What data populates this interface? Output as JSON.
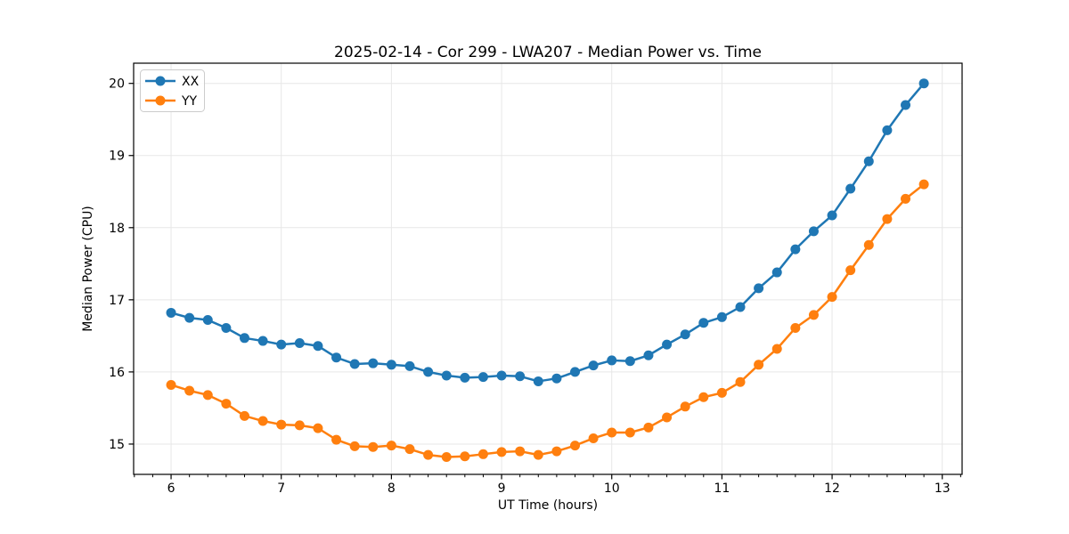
{
  "chart_data": {
    "type": "line",
    "title": "2025-02-14 - Cor 299 - LWA207 - Median Power vs. Time",
    "xlabel": "UT Time (hours)",
    "ylabel": "Median Power (CPU)",
    "xlim": [
      5.66,
      13.18
    ],
    "ylim": [
      14.58,
      20.28
    ],
    "xticks": [
      6,
      7,
      8,
      9,
      10,
      11,
      12,
      13
    ],
    "yticks": [
      15,
      16,
      17,
      18,
      19,
      20
    ],
    "x_minor_tick_step": 0.16667,
    "grid": true,
    "legend_position": "upper left",
    "x": [
      6.0,
      6.1667,
      6.3333,
      6.5,
      6.6667,
      6.8333,
      7.0,
      7.1667,
      7.3333,
      7.5,
      7.6667,
      7.8333,
      8.0,
      8.1667,
      8.3333,
      8.5,
      8.6667,
      8.8333,
      9.0,
      9.1667,
      9.3333,
      9.5,
      9.6667,
      9.8333,
      10.0,
      10.1667,
      10.3333,
      10.5,
      10.6667,
      10.8333,
      11.0,
      11.1667,
      11.3333,
      11.5,
      11.6667,
      11.8333,
      12.0,
      12.1667,
      12.3333,
      12.5,
      12.6667,
      12.8333
    ],
    "series": [
      {
        "name": "XX",
        "color": "#1f77b4",
        "values": [
          16.82,
          16.75,
          16.72,
          16.61,
          16.47,
          16.43,
          16.38,
          16.4,
          16.36,
          16.2,
          16.11,
          16.12,
          16.1,
          16.08,
          16.0,
          15.95,
          15.92,
          15.93,
          15.95,
          15.94,
          15.87,
          15.91,
          16.0,
          16.09,
          16.16,
          16.15,
          16.23,
          16.38,
          16.52,
          16.68,
          16.76,
          16.9,
          17.16,
          17.38,
          17.7,
          17.95,
          18.17,
          18.54,
          18.92,
          19.35,
          19.7,
          20.0
        ]
      },
      {
        "name": "YY",
        "color": "#ff7f0e",
        "values": [
          15.82,
          15.74,
          15.68,
          15.56,
          15.39,
          15.32,
          15.27,
          15.26,
          15.22,
          15.06,
          14.97,
          14.96,
          14.98,
          14.93,
          14.85,
          14.82,
          14.83,
          14.86,
          14.89,
          14.9,
          14.85,
          14.9,
          14.98,
          15.08,
          15.16,
          15.16,
          15.23,
          15.37,
          15.52,
          15.65,
          15.71,
          15.86,
          16.1,
          16.32,
          16.61,
          16.79,
          17.04,
          17.41,
          17.76,
          18.12,
          18.4,
          18.6
        ]
      }
    ],
    "style": {
      "background": "#ffffff",
      "grid_color": "#e7e7e7",
      "spine_color": "#000000",
      "tick_color": "#000000",
      "legend_border_color": "#cccccc",
      "legend_background": "#ffffff"
    }
  }
}
